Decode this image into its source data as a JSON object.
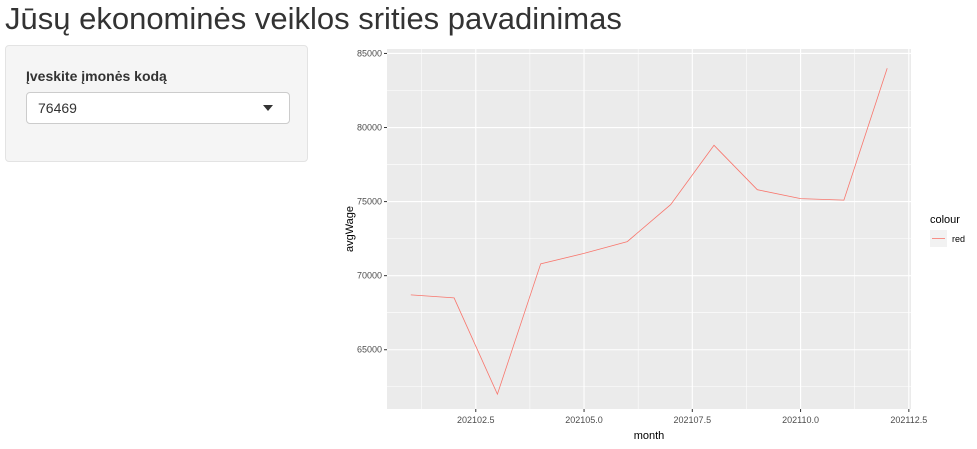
{
  "page": {
    "title": "Jūsų ekonominės veiklos srities pavadinimas"
  },
  "sidebar": {
    "select_label": "Įveskite įmonės kodą",
    "select_value": "76469"
  },
  "chart_data": {
    "type": "line",
    "xlabel": "month",
    "ylabel": "avgWage",
    "x": [
      202101,
      202102,
      202103,
      202104,
      202105,
      202106,
      202107,
      202108,
      202109,
      202110,
      202111,
      202112
    ],
    "series": [
      {
        "name": "red",
        "color": "#F8766D",
        "values": [
          68700,
          68500,
          62000,
          70800,
          71500,
          72300,
          74800,
          78800,
          75800,
          75200,
          75100,
          84000
        ]
      }
    ],
    "xlim": [
      202100.45,
      202112.55
    ],
    "ylim": [
      61000,
      85300
    ],
    "x_ticks": [
      202102.5,
      202105.0,
      202107.5,
      202110.0,
      202112.5
    ],
    "x_tick_labels": [
      "202102.5",
      "202105.0",
      "202107.5",
      "202110.0",
      "202112.5"
    ],
    "y_ticks": [
      65000,
      70000,
      75000,
      80000,
      85000
    ],
    "y_tick_labels": [
      "65000",
      "70000",
      "75000",
      "80000",
      "85000"
    ],
    "legend": {
      "title": "colour",
      "position": "right",
      "entries": [
        "red"
      ]
    },
    "grid": true,
    "panel_background": "#EBEBEB"
  }
}
